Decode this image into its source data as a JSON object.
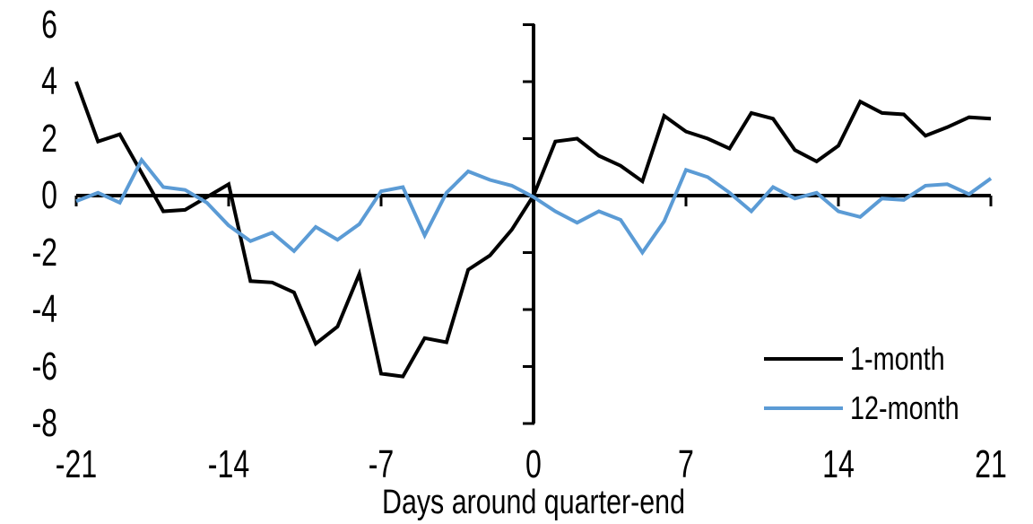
{
  "chart_data": {
    "type": "line",
    "title": "",
    "xlabel": "Days around quarter-end",
    "ylabel": "",
    "xlim": [
      -21,
      21
    ],
    "ylim": [
      -8,
      6
    ],
    "grid": false,
    "legend_position": "inside lower right",
    "x_ticks": [
      -21,
      -14,
      -7,
      0,
      7,
      14,
      21
    ],
    "x_tick_labels": [
      "-21",
      "-14",
      "-7",
      "0",
      "7",
      "14",
      "21"
    ],
    "y_ticks": [
      6,
      4,
      2,
      0,
      -2,
      -4,
      -6,
      -8
    ],
    "y_tick_labels": [
      "6",
      "4",
      "2",
      "0",
      "-2",
      "-4",
      "-6",
      "-8"
    ],
    "x": [
      -21,
      -20,
      -19,
      -18,
      -17,
      -16,
      -15,
      -14,
      -13,
      -12,
      -11,
      -10,
      -9,
      -8,
      -7,
      -6,
      -5,
      -4,
      -3,
      -2,
      -1,
      0,
      1,
      2,
      3,
      4,
      5,
      6,
      7,
      8,
      9,
      10,
      11,
      12,
      13,
      14,
      15,
      16,
      17,
      18,
      19,
      20,
      21
    ],
    "series": [
      {
        "name": "1-month",
        "color": "#000000",
        "values": [
          4.0,
          1.9,
          2.15,
          0.8,
          -0.55,
          -0.5,
          -0.05,
          0.4,
          -3.0,
          -3.05,
          -3.4,
          -5.2,
          -4.6,
          -2.75,
          -6.25,
          -6.35,
          -5.0,
          -5.15,
          -2.6,
          -2.1,
          -1.2,
          0.0,
          1.9,
          2.0,
          1.4,
          1.05,
          0.5,
          2.8,
          2.25,
          2.0,
          1.65,
          2.9,
          2.7,
          1.6,
          1.2,
          1.75,
          3.3,
          2.9,
          2.85,
          2.1,
          2.4,
          2.75,
          2.7
        ]
      },
      {
        "name": "12-month",
        "color": "#5B9BD5",
        "values": [
          -0.2,
          0.1,
          -0.25,
          1.25,
          0.3,
          0.2,
          -0.25,
          -1.05,
          -1.6,
          -1.3,
          -1.95,
          -1.1,
          -1.55,
          -1.0,
          0.15,
          0.3,
          -1.4,
          0.1,
          0.85,
          0.55,
          0.35,
          -0.05,
          -0.55,
          -0.95,
          -0.55,
          -0.85,
          -2.0,
          -0.9,
          0.9,
          0.65,
          0.1,
          -0.55,
          0.3,
          -0.1,
          0.1,
          -0.55,
          -0.75,
          -0.1,
          -0.15,
          0.35,
          0.4,
          0.05,
          0.6
        ]
      }
    ]
  }
}
